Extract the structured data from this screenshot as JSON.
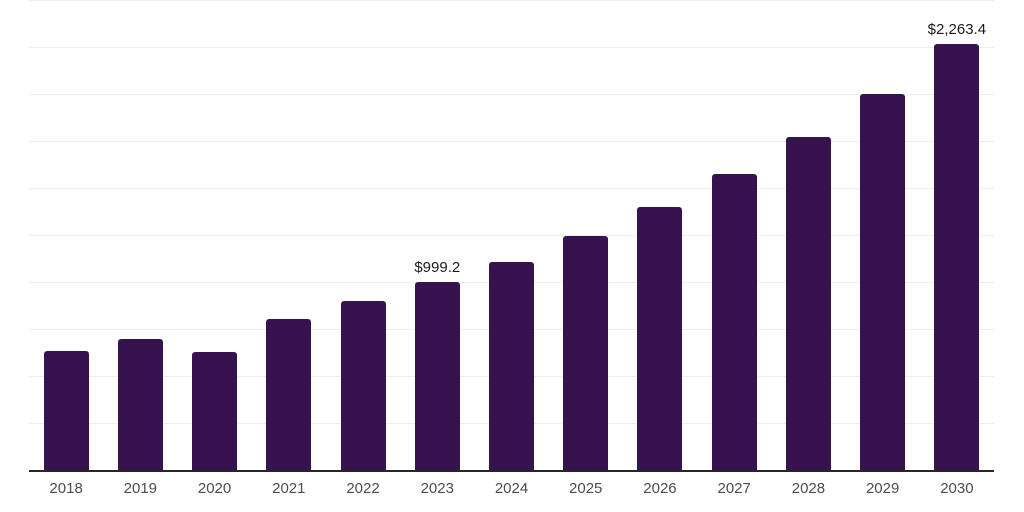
{
  "chart_data": {
    "type": "bar",
    "title": "",
    "xlabel": "",
    "ylabel": "",
    "categories": [
      "2018",
      "2019",
      "2020",
      "2021",
      "2022",
      "2023",
      "2024",
      "2025",
      "2026",
      "2027",
      "2028",
      "2029",
      "2030"
    ],
    "values": [
      631,
      697,
      629,
      803,
      897,
      999.2,
      1108,
      1245,
      1397,
      1573,
      1770,
      1998,
      2263.4
    ],
    "data_labels": {
      "2023": "$999.2",
      "2030": "$2,263.4"
    },
    "ylim": [
      0,
      2500
    ],
    "grid_step": 250,
    "grid": true,
    "legend": false,
    "colors": {
      "bar": "#36124f",
      "axis_line": "#262626",
      "gridline": "#ededed",
      "tick_label": "#4d4d4d",
      "value_label": "#1a1a1a",
      "background": "#ffffff"
    }
  }
}
